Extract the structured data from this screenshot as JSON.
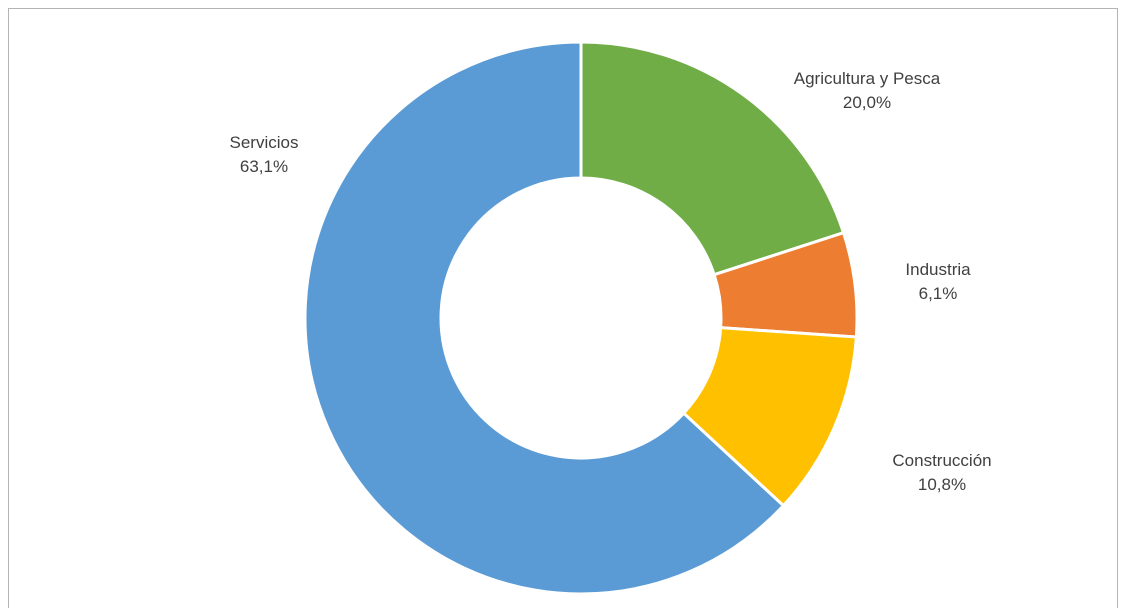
{
  "chart_data": {
    "type": "pie",
    "donut": true,
    "title": "",
    "legend": "none",
    "slices": [
      {
        "label": "Agricultura y Pesca",
        "value": 20.0,
        "value_label": "20,0%",
        "color": "#70ad47"
      },
      {
        "label": "Industria",
        "value": 6.1,
        "value_label": "6,1%",
        "color": "#ed7d31"
      },
      {
        "label": "Construcción",
        "value": 10.8,
        "value_label": "10,8%",
        "color": "#ffc000"
      },
      {
        "label": "Servicios",
        "value": 63.1,
        "value_label": "63,1%",
        "color": "#5b9bd5"
      }
    ]
  }
}
